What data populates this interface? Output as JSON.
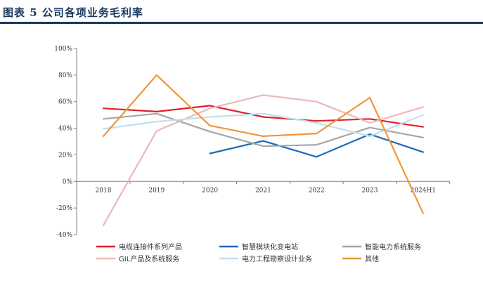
{
  "header": {
    "title": "图表 5   公司各项业务毛利率"
  },
  "chart_data": {
    "type": "line",
    "title": "公司各项业务毛利率",
    "xlabel": "",
    "ylabel": "",
    "categories": [
      "2018",
      "2019",
      "2020",
      "2021",
      "2022",
      "2023",
      "2024H1"
    ],
    "ylim": [
      -40,
      100
    ],
    "yticks": [
      -40,
      -20,
      0,
      20,
      40,
      60,
      80,
      100
    ],
    "ytick_labels": [
      "-40%",
      "-20%",
      "0%",
      "20%",
      "40%",
      "60%",
      "80%",
      "100%"
    ],
    "grid": false,
    "legend_position": "bottom",
    "series": [
      {
        "name": "电缆连接件系列产品",
        "color": "#e0202a",
        "values": [
          55,
          52.5,
          57,
          48.5,
          45.5,
          47,
          41
        ]
      },
      {
        "name": "智慧模块化变电站",
        "color": "#1f6ab5",
        "values": [
          null,
          null,
          21,
          30.5,
          18.5,
          35.5,
          22
        ]
      },
      {
        "name": "智能电力系统服务",
        "color": "#a6a6a6",
        "values": [
          47,
          51,
          37.5,
          26.5,
          27.5,
          40.5,
          33
        ]
      },
      {
        "name": "GIL产品及系统服务",
        "color": "#ebb8b8",
        "values": [
          -33,
          38,
          55,
          65,
          60,
          44,
          56
        ]
      },
      {
        "name": "电力工程勘察设计业务",
        "color": "#bfe0ee",
        "values": [
          39.5,
          45,
          48.5,
          51,
          44,
          34,
          50
        ]
      },
      {
        "name": "其他",
        "color": "#f0963c",
        "values": [
          34,
          80,
          42,
          34,
          36,
          63,
          -24
        ]
      }
    ]
  }
}
